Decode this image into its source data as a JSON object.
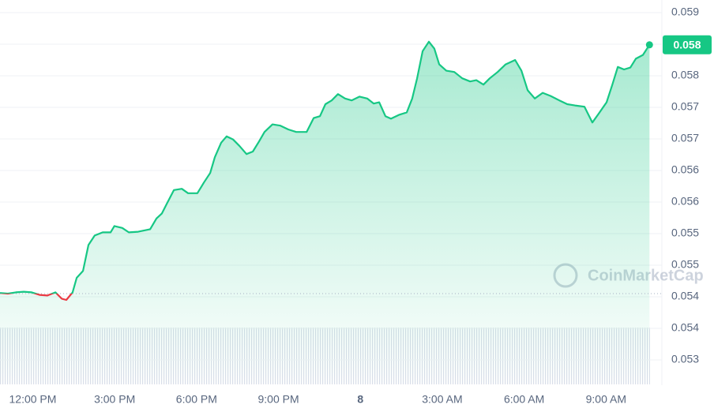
{
  "chart_data": {
    "type": "line",
    "x": [
      10.8,
      11.09,
      11.38,
      11.67,
      11.96,
      12.25,
      12.54,
      12.83,
      13.06,
      13.23,
      13.46,
      13.61,
      13.84,
      14.04,
      14.27,
      14.56,
      14.85,
      14.99,
      15.28,
      15.52,
      15.86,
      16.3,
      16.53,
      16.73,
      16.93,
      17.17,
      17.46,
      17.69,
      18.03,
      18.27,
      18.5,
      18.67,
      18.9,
      19.1,
      19.34,
      19.57,
      19.83,
      20.06,
      20.29,
      20.49,
      20.78,
      21.07,
      21.36,
      21.65,
      22.03,
      22.29,
      22.52,
      22.72,
      22.95,
      23.18,
      23.44,
      23.68,
      23.97,
      24.25,
      24.49,
      24.69,
      24.92,
      25.12,
      25.41,
      25.7,
      25.9,
      26.08,
      26.28,
      26.51,
      26.71,
      26.89,
      27.15,
      27.44,
      27.73,
      28.02,
      28.25,
      28.51,
      28.74,
      29.03,
      29.32,
      29.67,
      29.9,
      30.13,
      30.39,
      30.68,
      30.97,
      31.29,
      31.58,
      31.86,
      32.21,
      32.5,
      32.73,
      33.02,
      33.23,
      33.43,
      33.66,
      33.89,
      34.09,
      34.35,
      34.59
    ],
    "series": [
      {
        "color": "#16c784",
        "down_color": "#ea3943",
        "values": [
          0.05436,
          0.05435,
          0.05437,
          0.05438,
          0.05437,
          0.05433,
          0.05432,
          0.05437,
          0.05427,
          0.05425,
          0.05437,
          0.0546,
          0.05471,
          0.05512,
          0.05527,
          0.05532,
          0.05532,
          0.05542,
          0.05539,
          0.05532,
          0.05533,
          0.05537,
          0.05554,
          0.05562,
          0.05579,
          0.05599,
          0.05601,
          0.05594,
          0.05594,
          0.05611,
          0.05626,
          0.05651,
          0.05674,
          0.05684,
          0.05679,
          0.05669,
          0.05656,
          0.0566,
          0.05676,
          0.05691,
          0.05703,
          0.05701,
          0.05695,
          0.05691,
          0.05691,
          0.05713,
          0.05716,
          0.05735,
          0.05741,
          0.05751,
          0.05744,
          0.05741,
          0.05747,
          0.05744,
          0.05736,
          0.05738,
          0.05716,
          0.05712,
          0.05718,
          0.05722,
          0.05744,
          0.05776,
          0.05819,
          0.05834,
          0.05823,
          0.05798,
          0.05788,
          0.05786,
          0.05776,
          0.05771,
          0.05773,
          0.05766,
          0.05776,
          0.05786,
          0.05798,
          0.05805,
          0.05788,
          0.05757,
          0.05744,
          0.05753,
          0.05748,
          0.05741,
          0.05735,
          0.05733,
          0.05731,
          0.05706,
          0.0572,
          0.05738,
          0.05766,
          0.05794,
          0.0579,
          0.05793,
          0.05807,
          0.05813,
          0.05829
        ]
      }
    ],
    "baseline": 0.05435,
    "price_label": "0.058",
    "watermark": "CoinMarketCap",
    "xlim": [
      10.8,
      34.9
    ],
    "ylim": [
      0.0529,
      0.059
    ],
    "xticks": [
      {
        "value": 12,
        "label": "12:00 PM"
      },
      {
        "value": 15,
        "label": "3:00 PM"
      },
      {
        "value": 18,
        "label": "6:00 PM"
      },
      {
        "value": 21,
        "label": "9:00 PM"
      },
      {
        "value": 24,
        "label": "8"
      },
      {
        "value": 27,
        "label": "3:00 AM"
      },
      {
        "value": 30,
        "label": "6:00 AM"
      },
      {
        "value": 33,
        "label": "9:00 AM"
      }
    ],
    "yticks": [
      {
        "value": 0.0588,
        "label": "0.059"
      },
      {
        "value": 0.0583,
        "label": "0.058"
      },
      {
        "value": 0.0578,
        "label": "0.058"
      },
      {
        "value": 0.0573,
        "label": "0.057"
      },
      {
        "value": 0.0568,
        "label": "0.057"
      },
      {
        "value": 0.0563,
        "label": "0.056"
      },
      {
        "value": 0.0558,
        "label": "0.056"
      },
      {
        "value": 0.0553,
        "label": "0.055"
      },
      {
        "value": 0.0548,
        "label": "0.055"
      },
      {
        "value": 0.0543,
        "label": "0.054"
      },
      {
        "value": 0.0538,
        "label": "0.054"
      },
      {
        "value": 0.0533,
        "label": "0.053"
      }
    ],
    "grid": true
  }
}
